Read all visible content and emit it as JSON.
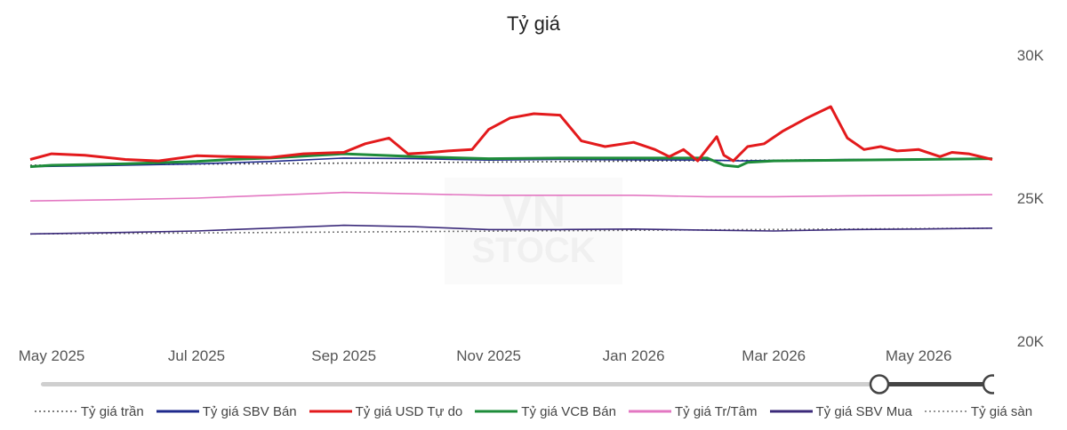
{
  "chart_data": {
    "type": "line",
    "title": "Tỷ giá",
    "x_ticks": [
      "May 2025",
      "Jul 2025",
      "Sep 2025",
      "Nov 2025",
      "Jan 2026",
      "Mar 2026",
      "May 2026"
    ],
    "y_ticks": [
      "30K",
      "25K",
      "20K"
    ],
    "ylim": [
      20000,
      30000
    ],
    "x_range": [
      "2025-04-22",
      "2026-06-01"
    ],
    "grid": false,
    "legend_position": "bottom",
    "series": [
      {
        "name": "Tỷ giá trần",
        "color": "#555555",
        "dashed": true,
        "x": [
          "2025-04-22",
          "2026-06-01"
        ],
        "y": [
          26150,
          26380
        ]
      },
      {
        "name": "Tỷ giá SBV Bán",
        "color": "#1f2a8c",
        "dashed": false,
        "x": [
          "2025-04-22",
          "2025-06-01",
          "2025-07-01",
          "2025-08-01",
          "2025-09-01",
          "2025-10-01",
          "2025-11-01",
          "2025-12-01",
          "2026-01-01",
          "2026-02-01",
          "2026-02-15",
          "2026-03-01",
          "2026-04-01",
          "2026-05-01",
          "2026-06-01"
        ],
        "y": [
          26100,
          26150,
          26200,
          26280,
          26400,
          26380,
          26330,
          26350,
          26340,
          26330,
          26300,
          26320,
          26350,
          26360,
          26380
        ]
      },
      {
        "name": "Tỷ giá USD Tự do",
        "color": "#e31a1c",
        "dashed": false,
        "x": [
          "2025-04-22",
          "2025-05-01",
          "2025-05-15",
          "2025-06-01",
          "2025-06-15",
          "2025-07-01",
          "2025-07-15",
          "2025-08-01",
          "2025-08-15",
          "2025-09-01",
          "2025-09-10",
          "2025-09-20",
          "2025-09-28",
          "2025-10-05",
          "2025-10-15",
          "2025-10-25",
          "2025-11-01",
          "2025-11-10",
          "2025-11-20",
          "2025-12-01",
          "2025-12-10",
          "2025-12-20",
          "2026-01-01",
          "2026-01-10",
          "2026-01-16",
          "2026-01-22",
          "2026-01-28",
          "2026-02-05",
          "2026-02-08",
          "2026-02-12",
          "2026-02-18",
          "2026-02-25",
          "2026-03-05",
          "2026-03-15",
          "2026-03-25",
          "2026-04-01",
          "2026-04-08",
          "2026-04-15",
          "2026-04-22",
          "2026-05-01",
          "2026-05-10",
          "2026-05-15",
          "2026-05-22",
          "2026-06-01"
        ],
        "y": [
          26350,
          26550,
          26500,
          26350,
          26300,
          26480,
          26450,
          26420,
          26550,
          26600,
          26900,
          27100,
          26550,
          26580,
          26650,
          26700,
          27400,
          27800,
          27950,
          27900,
          27000,
          26800,
          26950,
          26700,
          26450,
          26700,
          26300,
          27150,
          26500,
          26300,
          26800,
          26900,
          27350,
          27800,
          28200,
          27100,
          26700,
          26800,
          26650,
          26700,
          26450,
          26600,
          26550,
          26350
        ]
      },
      {
        "name": "Tỷ giá VCB Bán",
        "color": "#1e8c3a",
        "dashed": false,
        "x": [
          "2025-04-22",
          "2025-05-01",
          "2025-06-01",
          "2025-07-01",
          "2025-07-15",
          "2025-08-01",
          "2025-09-01",
          "2025-10-01",
          "2025-11-01",
          "2025-12-01",
          "2026-01-01",
          "2026-02-01",
          "2026-02-08",
          "2026-02-14",
          "2026-02-18",
          "2026-03-01",
          "2026-04-01",
          "2026-05-01",
          "2026-06-01"
        ],
        "y": [
          26100,
          26150,
          26200,
          26280,
          26350,
          26400,
          26550,
          26450,
          26380,
          26400,
          26400,
          26400,
          26150,
          26100,
          26250,
          26300,
          26330,
          26350,
          26380
        ]
      },
      {
        "name": "Tỷ giá Tr/Tâm",
        "color": "#e377c2",
        "dashed": false,
        "x": [
          "2025-04-22",
          "2025-06-01",
          "2025-07-01",
          "2025-08-01",
          "2025-09-01",
          "2025-10-01",
          "2025-11-01",
          "2025-12-01",
          "2026-01-01",
          "2026-02-01",
          "2026-03-01",
          "2026-04-01",
          "2026-05-01",
          "2026-06-01"
        ],
        "y": [
          24900,
          24950,
          25000,
          25100,
          25200,
          25150,
          25100,
          25100,
          25100,
          25050,
          25050,
          25080,
          25100,
          25120
        ]
      },
      {
        "name": "Tỷ giá SBV Mua",
        "color": "#3b2a7a",
        "dashed": false,
        "x": [
          "2025-04-22",
          "2025-06-01",
          "2025-07-01",
          "2025-08-01",
          "2025-09-01",
          "2025-10-01",
          "2025-11-01",
          "2025-12-01",
          "2026-01-01",
          "2026-02-01",
          "2026-03-01",
          "2026-04-01",
          "2026-05-01",
          "2026-06-01"
        ],
        "y": [
          23750,
          23800,
          23850,
          23950,
          24050,
          24000,
          23900,
          23900,
          23920,
          23880,
          23850,
          23900,
          23920,
          23950
        ]
      },
      {
        "name": "Tỷ giá sàn",
        "color": "#777777",
        "dashed": true,
        "x": [
          "2025-04-22",
          "2026-06-01"
        ],
        "y": [
          23750,
          23950
        ]
      }
    ]
  }
}
